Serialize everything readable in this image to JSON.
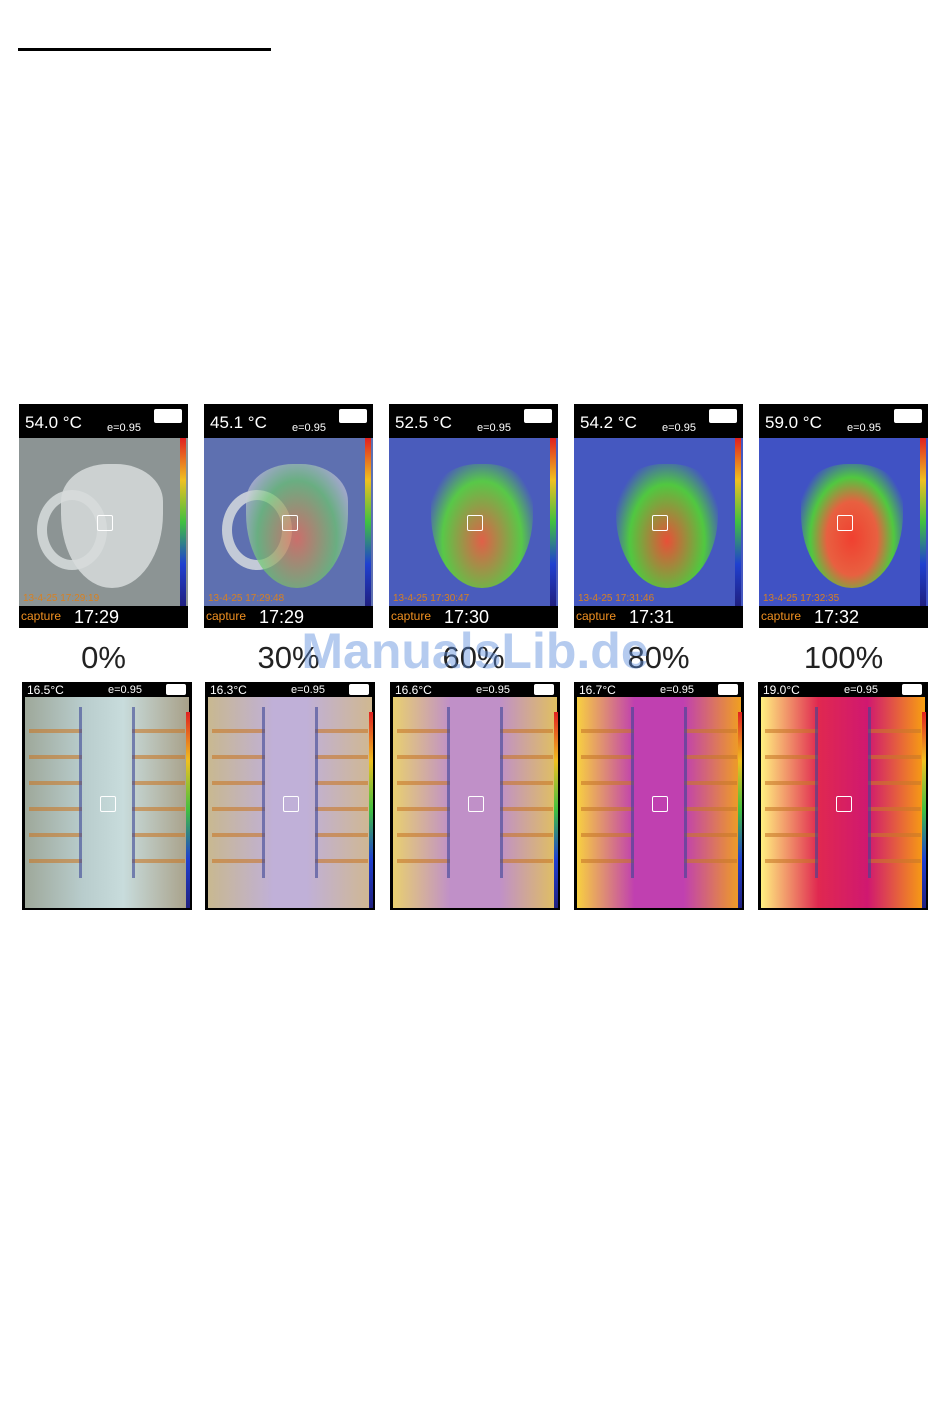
{
  "watermark": "ManualsLib.de",
  "cup_screens": [
    {
      "temperature": "54.0 °C",
      "emissivity": "e=0.95",
      "timestamp": "13-4-25 17:29:19",
      "mode": "capture",
      "time": "17:29"
    },
    {
      "temperature": "45.1 °C",
      "emissivity": "e=0.95",
      "timestamp": "13-4-25 17:29:48",
      "mode": "capture",
      "time": "17:29"
    },
    {
      "temperature": "52.5 °C",
      "emissivity": "e=0.95",
      "timestamp": "13-4-25 17:30:47",
      "mode": "capture",
      "time": "17:30"
    },
    {
      "temperature": "54.2 °C",
      "emissivity": "e=0.95",
      "timestamp": "13-4-25 17:31:46",
      "mode": "capture",
      "time": "17:31"
    },
    {
      "temperature": "59.0 °C",
      "emissivity": "e=0.95",
      "timestamp": "13-4-25 17:32:35",
      "mode": "capture",
      "time": "17:32"
    }
  ],
  "blend_labels": [
    "0%",
    "30%",
    "60%",
    "80%",
    "100%"
  ],
  "warehouse_screens": [
    {
      "temperature": "16.5°C",
      "emissivity": "e=0.95"
    },
    {
      "temperature": "16.3°C",
      "emissivity": "e=0.95"
    },
    {
      "temperature": "16.6°C",
      "emissivity": "e=0.95"
    },
    {
      "temperature": "16.7°C",
      "emissivity": "e=0.95"
    },
    {
      "temperature": "19.0°C",
      "emissivity": "e=0.95"
    }
  ]
}
